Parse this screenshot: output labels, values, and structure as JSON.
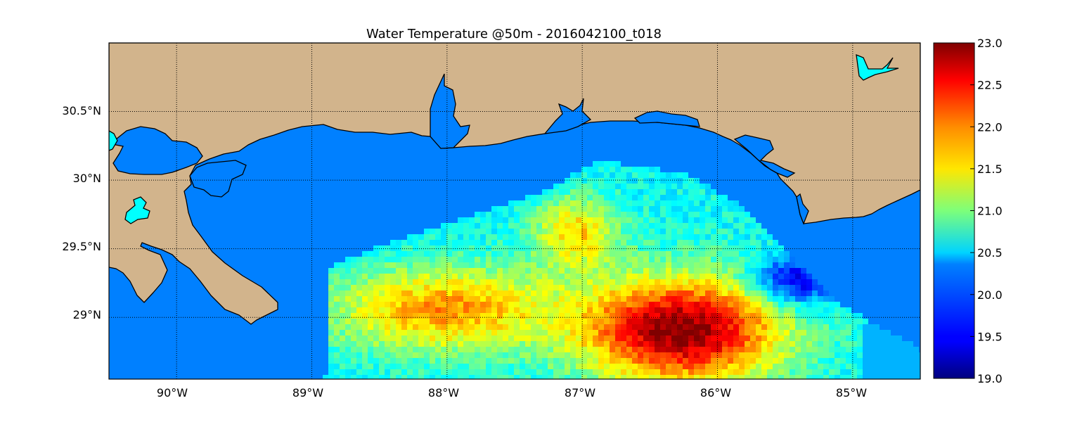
{
  "title": "Water Temperature @50m - 2016042100_t018",
  "map": {
    "lon_range": [
      -90.5,
      -84.5
    ],
    "lat_range": [
      28.55,
      31.0
    ],
    "meridians": [
      {
        "value": -90,
        "label": "90°W"
      },
      {
        "value": -89,
        "label": "89°W"
      },
      {
        "value": -88,
        "label": "88°W"
      },
      {
        "value": -87,
        "label": "87°W"
      },
      {
        "value": -86,
        "label": "86°W"
      },
      {
        "value": -85,
        "label": "85°W"
      }
    ],
    "parallels": [
      {
        "value": 30.5,
        "label": "30.5°N"
      },
      {
        "value": 30.0,
        "label": "30°N"
      },
      {
        "value": 29.5,
        "label": "29.5°N"
      },
      {
        "value": 29.0,
        "label": "29°N"
      }
    ],
    "grid": "dotted",
    "colors": {
      "land": "#d2b48c",
      "ocean": "#0080ff",
      "lakes": "#00ffff",
      "coastline": "#000000"
    }
  },
  "colorbar": {
    "colormap": "jet",
    "min": 19.0,
    "max": 23.0,
    "ticks": [
      "19.0",
      "19.5",
      "20.0",
      "20.5",
      "21.0",
      "21.5",
      "22.0",
      "22.5",
      "23.0"
    ]
  }
}
